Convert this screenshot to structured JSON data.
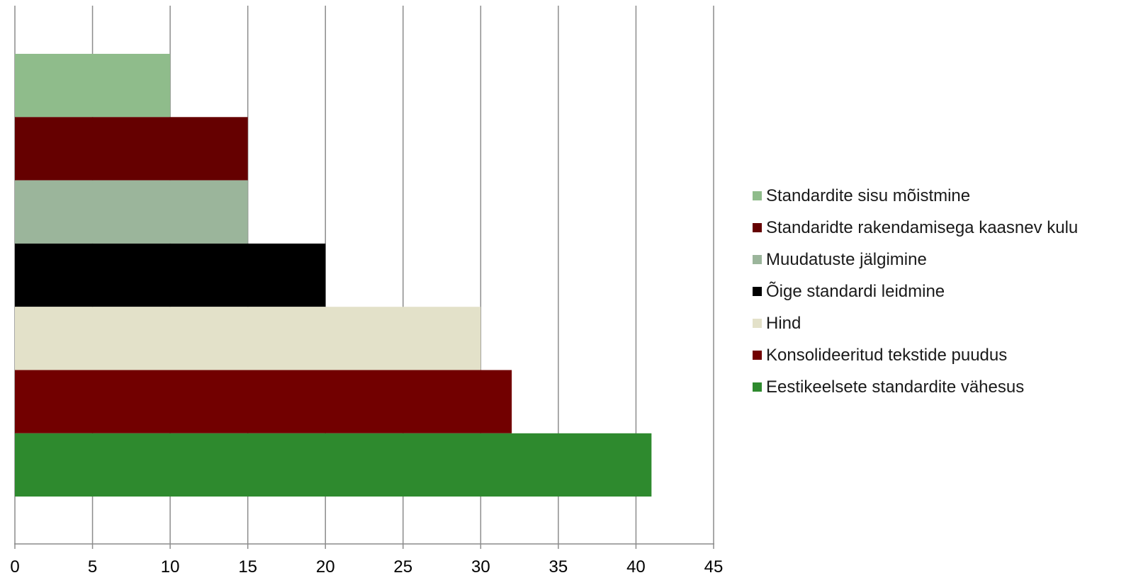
{
  "chart_data": {
    "type": "bar",
    "orientation": "horizontal",
    "categories": [
      "Standardite sisu mõistmine",
      "Standaridte rakendamisega kaasnev kulu",
      "Muudatuste jälgimine",
      "Õige standardi leidmine",
      "Hind",
      "Konsolideeritud tekstide puudus",
      "Eestikeelsete standardite vähesus"
    ],
    "values": [
      10,
      15,
      15,
      20,
      30,
      32,
      41
    ],
    "colors": [
      "#8fbc8b",
      "#650000",
      "#9bb59b",
      "#000000",
      "#e3e1c9",
      "#720000",
      "#2e8a2e"
    ],
    "xlim": [
      0,
      45
    ],
    "x_ticks": [
      "0",
      "5",
      "10",
      "15",
      "20",
      "25",
      "30",
      "35",
      "40",
      "45"
    ],
    "grid": "vertical",
    "legend": "right",
    "title": "",
    "xlabel": "",
    "ylabel": ""
  }
}
